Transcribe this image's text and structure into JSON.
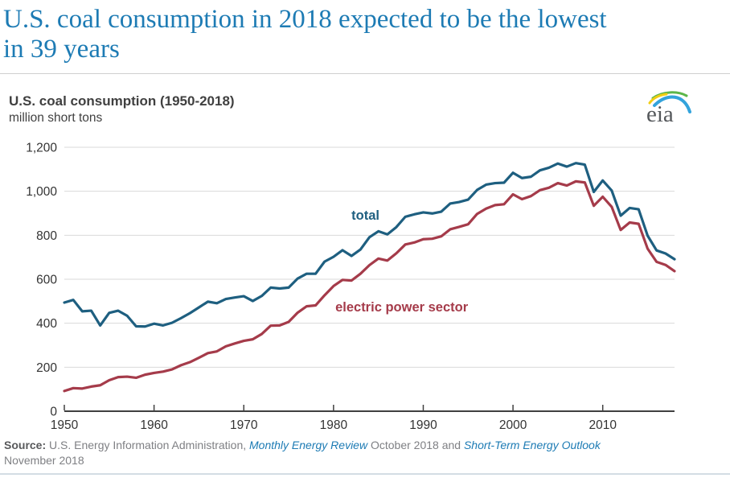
{
  "headline": {
    "line1": "U.S. coal consumption in 2018 expected to be the lowest",
    "line2": "in 39 years"
  },
  "logo": {
    "text": "eia"
  },
  "colors": {
    "headline_blue": "#1d7bb4",
    "link_blue": "#1d7bb4",
    "total_line": "#1e5f80",
    "electric_line": "#a53b4a",
    "gridline": "#d9d9d9",
    "axis": "#404040",
    "tick_label": "#333333",
    "footer_gray": "#7f8084",
    "footer_dark_gray": "#58595b",
    "logo_green": "#5cb64a",
    "logo_yellow": "#f2cd13",
    "logo_blue": "#33a3dc"
  },
  "footer": {
    "source_label": "Source:",
    "agency": " U.S. Energy Information Administration, ",
    "link1": "Monthly Energy Review",
    "mid": " October 2018 and ",
    "link2": "Short-Term Energy Outlook",
    "line2": "November 2018"
  },
  "chart_data": {
    "type": "line",
    "title": "U.S. coal consumption (1950-2018)",
    "units": "million short tons",
    "xlim": [
      1950,
      2018
    ],
    "ylim": [
      0,
      1200
    ],
    "grid": "horizontal",
    "legend_position": "inline-labels",
    "years": [
      1950,
      1951,
      1952,
      1953,
      1954,
      1955,
      1956,
      1957,
      1958,
      1959,
      1960,
      1961,
      1962,
      1963,
      1964,
      1965,
      1966,
      1967,
      1968,
      1969,
      1970,
      1971,
      1972,
      1973,
      1974,
      1975,
      1976,
      1977,
      1978,
      1979,
      1980,
      1981,
      1982,
      1983,
      1984,
      1985,
      1986,
      1987,
      1988,
      1989,
      1990,
      1991,
      1992,
      1993,
      1994,
      1995,
      1996,
      1997,
      1998,
      1999,
      2000,
      2001,
      2002,
      2003,
      2004,
      2005,
      2006,
      2007,
      2008,
      2009,
      2010,
      2011,
      2012,
      2013,
      2014,
      2015,
      2016,
      2017,
      2018
    ],
    "series": [
      {
        "name": "total",
        "color": "#1e5f80",
        "values": [
          494,
          506,
          454,
          457,
          390,
          447,
          457,
          434,
          386,
          385,
          398,
          390,
          402,
          423,
          446,
          472,
          498,
          491,
          510,
          517,
          523,
          501,
          524,
          562,
          558,
          562,
          603,
          625,
          625,
          680,
          702,
          732,
          706,
          735,
          791,
          818,
          804,
          837,
          884,
          895,
          904,
          899,
          907,
          944,
          951,
          962,
          1006,
          1030,
          1037,
          1039,
          1084,
          1060,
          1066,
          1095,
          1107,
          1126,
          1112,
          1128,
          1121,
          997,
          1049,
          1003,
          889,
          924,
          918,
          798,
          731,
          717,
          691
        ]
      },
      {
        "name": "electric power sector",
        "color": "#a53b4a",
        "values": [
          92,
          105,
          103,
          112,
          118,
          141,
          155,
          157,
          152,
          166,
          174,
          180,
          190,
          209,
          223,
          243,
          264,
          272,
          295,
          308,
          320,
          327,
          351,
          389,
          390,
          406,
          448,
          477,
          481,
          527,
          569,
          597,
          594,
          625,
          664,
          694,
          685,
          718,
          758,
          767,
          782,
          784,
          795,
          827,
          838,
          850,
          897,
          921,
          937,
          941,
          986,
          964,
          978,
          1005,
          1016,
          1037,
          1026,
          1045,
          1040,
          934,
          975,
          929,
          824,
          858,
          852,
          739,
          679,
          665,
          637
        ]
      }
    ],
    "yticks": [
      {
        "value": 0,
        "label": "0"
      },
      {
        "value": 200,
        "label": "200"
      },
      {
        "value": 400,
        "label": "400"
      },
      {
        "value": 600,
        "label": "600"
      },
      {
        "value": 800,
        "label": "800"
      },
      {
        "value": 1000,
        "label": "1,000"
      },
      {
        "value": 1200,
        "label": "1,200"
      }
    ],
    "xticks": [
      1950,
      1960,
      1970,
      1980,
      1990,
      2000,
      2010
    ],
    "annotations": [
      {
        "text": "total",
        "year": 1982.0,
        "value": 870,
        "color": "#1e5f80"
      },
      {
        "text": "electric power sector",
        "year": 1980.2,
        "value": 454,
        "color": "#a53b4a"
      }
    ]
  }
}
